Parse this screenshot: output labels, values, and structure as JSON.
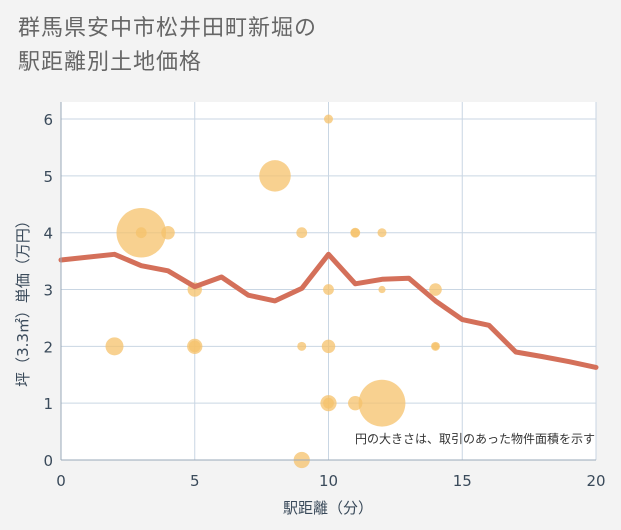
{
  "title_lines": [
    "群馬県安中市松井田町新堀の",
    "駅距離別土地価格"
  ],
  "chart_data": {
    "type": "scatter",
    "title": "群馬県安中市松井田町新堀の駅距離別土地価格",
    "xlabel": "駅距離（分）",
    "ylabel": "坪（3.3㎡）単価（万円）",
    "xlim": [
      0,
      20
    ],
    "ylim": [
      0,
      6.3
    ],
    "xticks": [
      0,
      5,
      10,
      15,
      20
    ],
    "yticks": [
      0,
      1,
      2,
      3,
      4,
      5,
      6
    ],
    "grid": true,
    "note": "円の大きさは、取引のあった物件面積を示す",
    "colors": {
      "bubble": "#f5c26b",
      "line": "#d4705a",
      "grid": "#c9d6e3",
      "background": "#f3f3f3",
      "plot": "#ffffff"
    },
    "bubbles": [
      {
        "x": 2,
        "y": 2,
        "size": 2
      },
      {
        "x": 3,
        "y": 4,
        "size": 5.5
      },
      {
        "x": 3,
        "y": 4,
        "size": 1.2
      },
      {
        "x": 4,
        "y": 4,
        "size": 1.5
      },
      {
        "x": 5,
        "y": 3,
        "size": 1.6
      },
      {
        "x": 5,
        "y": 2,
        "size": 1.7
      },
      {
        "x": 5,
        "y": 2,
        "size": 1.3
      },
      {
        "x": 8,
        "y": 5,
        "size": 3.5
      },
      {
        "x": 9,
        "y": 4,
        "size": 1.2
      },
      {
        "x": 9,
        "y": 2,
        "size": 1
      },
      {
        "x": 9,
        "y": 0,
        "size": 1.8
      },
      {
        "x": 10,
        "y": 6,
        "size": 1
      },
      {
        "x": 10,
        "y": 3,
        "size": 1.2
      },
      {
        "x": 10,
        "y": 2,
        "size": 1.5
      },
      {
        "x": 10,
        "y": 1,
        "size": 1.8
      },
      {
        "x": 10,
        "y": 1,
        "size": 1.2
      },
      {
        "x": 11,
        "y": 4,
        "size": 1.1
      },
      {
        "x": 11,
        "y": 4,
        "size": 1
      },
      {
        "x": 11,
        "y": 1,
        "size": 1.6
      },
      {
        "x": 12,
        "y": 4,
        "size": 1
      },
      {
        "x": 12,
        "y": 3,
        "size": 0.8
      },
      {
        "x": 12,
        "y": 1,
        "size": 5.2
      },
      {
        "x": 14,
        "y": 3,
        "size": 1.4
      },
      {
        "x": 14,
        "y": 2,
        "size": 1
      },
      {
        "x": 14,
        "y": 2,
        "size": 0.8
      }
    ],
    "series": [
      {
        "type": "line",
        "x": [
          0,
          2,
          3,
          4,
          5,
          6,
          7,
          8,
          9,
          10,
          11,
          12,
          13,
          14,
          15,
          16,
          17,
          18,
          19,
          20
        ],
        "values": [
          3.52,
          3.62,
          3.42,
          3.33,
          3.05,
          3.22,
          2.9,
          2.8,
          3.02,
          3.62,
          3.1,
          3.18,
          3.2,
          2.8,
          2.47,
          2.37,
          1.9,
          1.82,
          1.73,
          1.63
        ]
      }
    ]
  }
}
